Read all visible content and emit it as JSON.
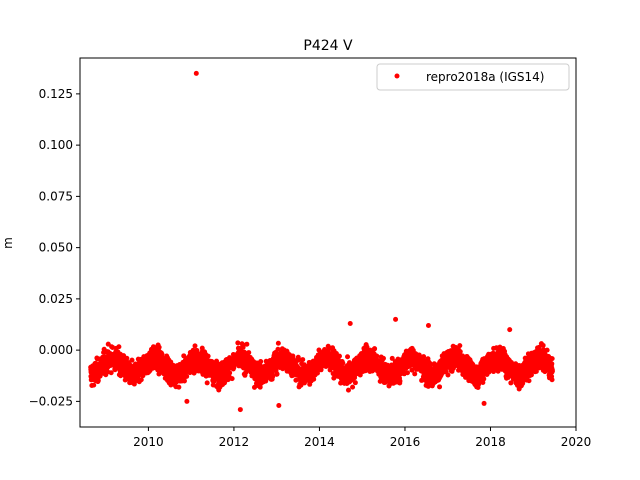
{
  "chart_data": {
    "type": "scatter",
    "title": "P424 V",
    "xlabel": "",
    "ylabel": "m",
    "xlim": [
      2008.4,
      2020.0
    ],
    "ylim": [
      -0.0375,
      0.1425
    ],
    "x_ticks": [
      2010,
      2012,
      2014,
      2016,
      2018,
      2020
    ],
    "y_ticks": [
      -0.025,
      0.0,
      0.025,
      0.05,
      0.075,
      0.1,
      0.125
    ],
    "x_tick_labels": [
      "2010",
      "2012",
      "2014",
      "2016",
      "2018",
      "2020"
    ],
    "y_tick_labels": [
      "−0.025",
      "0.000",
      "0.025",
      "0.050",
      "0.075",
      "0.100",
      "0.125"
    ],
    "grid": false,
    "legend_position": "top-right",
    "series": [
      {
        "name": "repro2018a (IGS14)",
        "color": "#ff0000",
        "marker": "circle",
        "x_range": [
          2008.65,
          2019.45
        ],
        "baseline": -0.008,
        "spread": 0.007,
        "outliers": [
          {
            "x": 2011.12,
            "y": 0.135
          },
          {
            "x": 2012.15,
            "y": -0.029
          },
          {
            "x": 2015.78,
            "y": 0.015
          },
          {
            "x": 2014.72,
            "y": 0.013
          },
          {
            "x": 2018.45,
            "y": 0.01
          },
          {
            "x": 2016.55,
            "y": 0.012
          },
          {
            "x": 2010.9,
            "y": -0.025
          },
          {
            "x": 2013.05,
            "y": -0.027
          },
          {
            "x": 2017.85,
            "y": -0.026
          }
        ]
      }
    ]
  }
}
